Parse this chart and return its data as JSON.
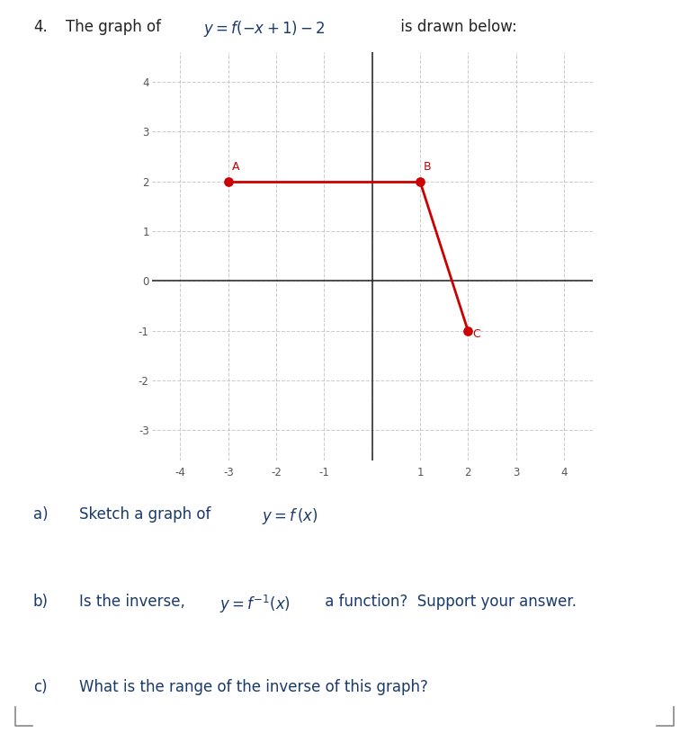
{
  "graph_points": {
    "A": [
      -3,
      2
    ],
    "B": [
      1,
      2
    ],
    "C": [
      2,
      -1
    ]
  },
  "line_color": "#cc0000",
  "point_color": "#cc0000",
  "point_size": 45,
  "xlim": [
    -4.6,
    4.6
  ],
  "ylim": [
    -3.6,
    4.6
  ],
  "xticks": [
    -4,
    -3,
    -2,
    -1,
    0,
    1,
    2,
    3,
    4
  ],
  "yticks": [
    -3,
    -2,
    -1,
    0,
    1,
    2,
    3,
    4
  ],
  "grid_color": "#c0c0c0",
  "grid_alpha": 0.8,
  "axis_color": "#222222",
  "tick_color": "#555555",
  "tick_fontsize": 8.5,
  "point_label_fontsize": 9,
  "point_label_color": "#cc0000",
  "text_color": "#1a3a6b",
  "black_color": "#222222",
  "bg_color": "#ffffff",
  "figure_width": 7.66,
  "figure_height": 8.25
}
